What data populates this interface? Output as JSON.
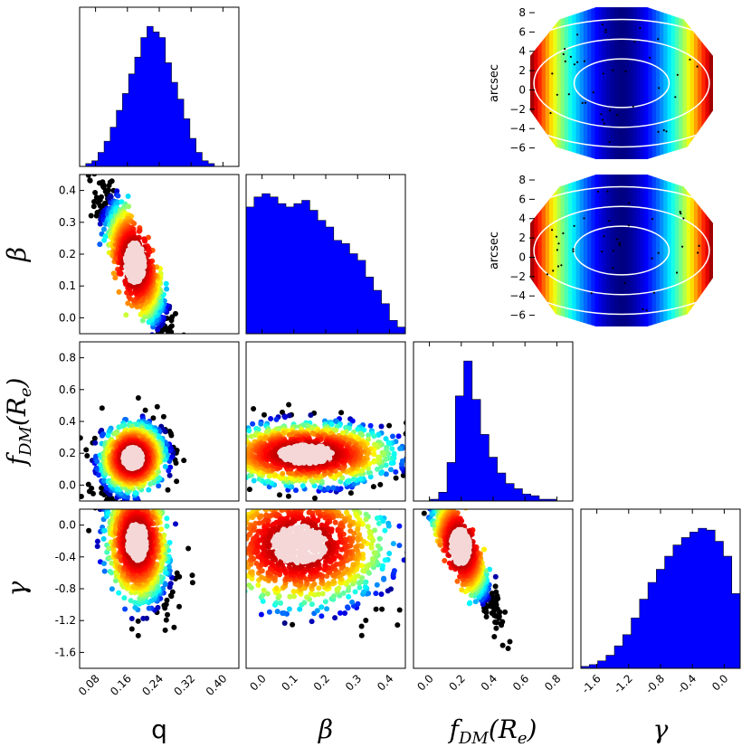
{
  "chart_data": {
    "type": "corner-plot",
    "parameters": [
      {
        "key": "q",
        "label": "q",
        "sub": "",
        "ticks": [
          "0.08",
          "0.16",
          "0.24",
          "0.32",
          "0.40"
        ],
        "range": [
          0.04,
          0.4
        ]
      },
      {
        "key": "beta",
        "label": "β",
        "sub": "",
        "ticks": [
          "0.0",
          "0.1",
          "0.2",
          "0.3",
          "0.4"
        ],
        "range": [
          -0.05,
          0.4
        ]
      },
      {
        "key": "fdm",
        "label": "f",
        "sub": "DM",
        "paren": "(R",
        "sub2": "e",
        "close": ")",
        "ticks": [
          "0.0",
          "0.2",
          "0.4",
          "0.6",
          "0.8"
        ],
        "range": [
          0.05,
          0.9
        ]
      },
      {
        "key": "gamma",
        "label": "γ",
        "sub": "",
        "ticks": [
          "-1.6",
          "-1.2",
          "-0.8",
          "-0.4",
          "0.0"
        ],
        "range": [
          -1.7,
          0.0
        ]
      }
    ],
    "row_ticks": {
      "beta": [
        "0.0",
        "0.1",
        "0.2",
        "0.3",
        "0.4"
      ],
      "fdm": [
        "0.0",
        "0.2",
        "0.4",
        "0.6",
        "0.8"
      ],
      "gamma": [
        "-1.6",
        "-1.2",
        "-0.8",
        "-0.4",
        "0.0"
      ]
    },
    "histograms": {
      "q": [
        0,
        1,
        2,
        5,
        9,
        14,
        20,
        26,
        33,
        39,
        46,
        50,
        48,
        46,
        37,
        30,
        24,
        17,
        10,
        5,
        2,
        1,
        0,
        0,
        0,
        0
      ],
      "beta": [
        38,
        41,
        42,
        41,
        39,
        38,
        39,
        40,
        37,
        34,
        32,
        28,
        27,
        24,
        22,
        17,
        13,
        9,
        4,
        2
      ],
      "fdm": [
        0,
        0,
        1,
        5,
        22,
        60,
        80,
        58,
        38,
        25,
        16,
        10,
        7,
        4,
        3,
        1,
        1,
        0,
        0
      ],
      "gamma": [
        1,
        2,
        4,
        7,
        12,
        18,
        27,
        37,
        46,
        53,
        60,
        66,
        70,
        73,
        75,
        74,
        68,
        60,
        40
      ]
    },
    "scatter_panels": [
      {
        "x": "q",
        "y": "beta",
        "cx": 0.165,
        "cy": 0.15,
        "sx": 0.035,
        "sy": 0.09,
        "rho": -0.85
      },
      {
        "x": "q",
        "y": "fdm",
        "cx": 0.16,
        "cy": 0.28,
        "sx": 0.035,
        "sy": 0.09,
        "rho": 0.25
      },
      {
        "x": "beta",
        "y": "fdm",
        "cx": 0.12,
        "cy": 0.3,
        "sx": 0.12,
        "sy": 0.08,
        "rho": 0.0
      },
      {
        "x": "q",
        "y": "gamma",
        "cx": 0.17,
        "cy": -0.35,
        "sx": 0.035,
        "sy": 0.32,
        "rho": -0.4
      },
      {
        "x": "beta",
        "y": "gamma",
        "cx": 0.1,
        "cy": -0.38,
        "sx": 0.12,
        "sy": 0.32,
        "rho": -0.2
      },
      {
        "x": "fdm",
        "y": "gamma",
        "cx": 0.3,
        "cy": -0.4,
        "sx": 0.08,
        "sy": 0.3,
        "rho": -0.88
      }
    ],
    "maps": [
      {
        "ylabel": "arcsec",
        "ticks": [
          "8",
          "6",
          "4",
          "2",
          "0",
          "−2",
          "−4",
          "−6"
        ]
      },
      {
        "ylabel": "arcsec",
        "ticks": [
          "8",
          "6",
          "4",
          "2",
          "0",
          "−2",
          "−4",
          "−6"
        ]
      }
    ],
    "colormap": "jet",
    "histogram_color": "#0000ff"
  }
}
